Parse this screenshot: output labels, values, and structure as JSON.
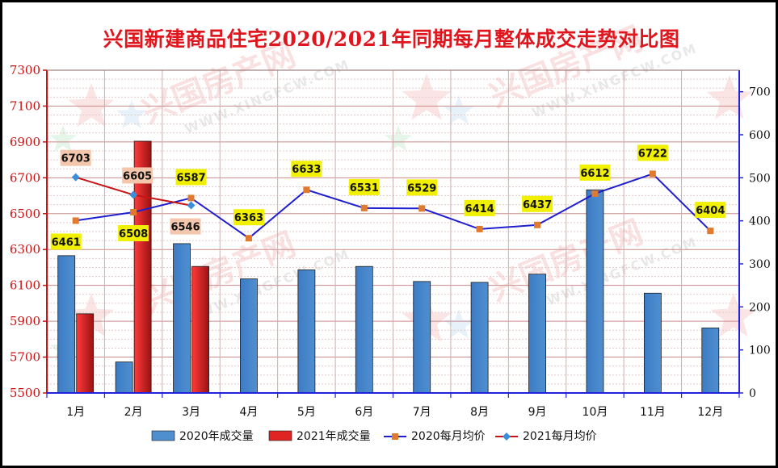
{
  "chart_data": {
    "type": "bar",
    "title": "兴国新建商品住宅2020/2021年同期每月整体成交走势对比图",
    "categories": [
      "1月",
      "2月",
      "3月",
      "4月",
      "5月",
      "6月",
      "7月",
      "8月",
      "9月",
      "10月",
      "11月",
      "12月"
    ],
    "bar_series": [
      {
        "name": "2020年成交量",
        "color": "#4f8fd0",
        "values": [
          319,
          72,
          347,
          265,
          286,
          294,
          259,
          257,
          276,
          472,
          232,
          151
        ]
      },
      {
        "name": "2021年成交量",
        "color": "#e02424",
        "values": [
          184,
          585,
          294,
          null,
          null,
          null,
          null,
          null,
          null,
          null,
          null,
          null
        ]
      }
    ],
    "line_series": [
      {
        "name": "2020每月均价",
        "color": "#1f1fd0",
        "marker_color": "#e07a2e",
        "marker": "square",
        "values": [
          6461,
          6508,
          6587,
          6363,
          6633,
          6531,
          6529,
          6414,
          6437,
          6612,
          6722,
          6404
        ]
      },
      {
        "name": "2021每月均价",
        "color": "#c81414",
        "marker_color": "#3a8fd8",
        "marker": "diamond",
        "values": [
          6703,
          6605,
          6546,
          null,
          null,
          null,
          null,
          null,
          null,
          null,
          null,
          null
        ]
      }
    ],
    "y_left": {
      "min": 5500,
      "max": 7300,
      "ticks": [
        5500,
        5700,
        5900,
        6100,
        6300,
        6500,
        6700,
        6900,
        7100,
        7300
      ],
      "color": "#cc1111"
    },
    "y_right": {
      "min": 0,
      "max": 750,
      "ticks": [
        0,
        100,
        200,
        300,
        400,
        500,
        600,
        700
      ]
    },
    "grid": true,
    "legend_position": "bottom"
  },
  "watermark": {
    "brand": "兴国房产网",
    "site": "WWW.XINGFCW.COM"
  }
}
